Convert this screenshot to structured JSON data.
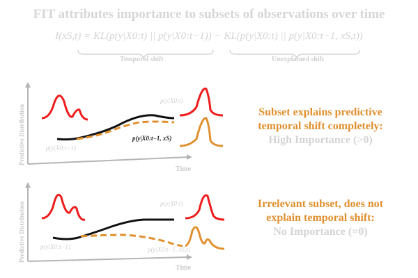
{
  "title": "FIT attributes importance to subsets of observations over time",
  "formula": "I(xS,t) = KL(p(y|X0:t) || p(y|X0:t−1)) − KL(p(y|X0:t) || p(y|X0:t−1, xS,t))",
  "brace_labels": {
    "temporal": "Temporal shift",
    "unexplained": "Unexplained shift"
  },
  "panels": [
    {
      "ylabel": "Predictive Distribution",
      "xlabel": "Time",
      "label_prev": "p(y|X0:t−1)",
      "label_full": "p(y|X0:t)",
      "label_subset": "p(y|X0:t−1, xS)",
      "caption": {
        "line1": "Subset explains predictive",
        "line2": "temporal shift completely:",
        "line3": "High Importance (>0)"
      }
    },
    {
      "ylabel": "Predictive Distribution",
      "xlabel": "Time",
      "label_prev": "p(y|X0:t−1)",
      "label_full": "p(y|X0:t)",
      "label_subset": "p(y|X0:t−1, xS,t)",
      "caption": {
        "line1": "Irrelevant subset, does not",
        "line2": "explain temporal shift:",
        "line3": "No Importance (=0)"
      }
    }
  ],
  "colors": {
    "red": "#ee1c1c",
    "orange": "#e0902f",
    "black": "#111111",
    "grey": "#cccccc"
  }
}
